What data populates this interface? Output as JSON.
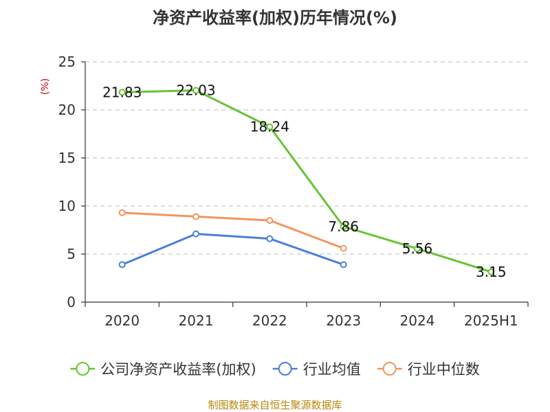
{
  "colors": {
    "company": "#66c431",
    "industry_avg": "#4a7fd8",
    "industry_median": "#f2945e",
    "unit": "#cc0000",
    "source": "#b8860b",
    "grid": "#c8c8c8",
    "axis": "#333333"
  },
  "chart_data": {
    "type": "line",
    "title": "净资产收益率(加权)历年情况(%)",
    "ylabel": "(%)",
    "xlabel": "",
    "categories": [
      "2020",
      "2021",
      "2022",
      "2023",
      "2024",
      "2025H1"
    ],
    "ylim": [
      0,
      25
    ],
    "yticks": [
      0,
      5,
      10,
      15,
      20,
      25
    ],
    "grid": true,
    "legend_position": "bottom",
    "series": [
      {
        "name": "公司净资产收益率(加权)",
        "color_key": "company",
        "values": [
          21.83,
          22.03,
          18.24,
          7.86,
          5.56,
          3.15
        ],
        "labels": [
          "21.83",
          "22.03",
          "18.24",
          "7.86",
          "5.56",
          "3.15"
        ]
      },
      {
        "name": "行业均值",
        "color_key": "industry_avg",
        "values": [
          3.9,
          7.1,
          6.6,
          3.9,
          null,
          null
        ]
      },
      {
        "name": "行业中位数",
        "color_key": "industry_median",
        "values": [
          9.3,
          8.9,
          8.5,
          5.6,
          null,
          null
        ]
      }
    ]
  },
  "footer": {
    "source": "制图数据来自恒生聚源数据库"
  }
}
